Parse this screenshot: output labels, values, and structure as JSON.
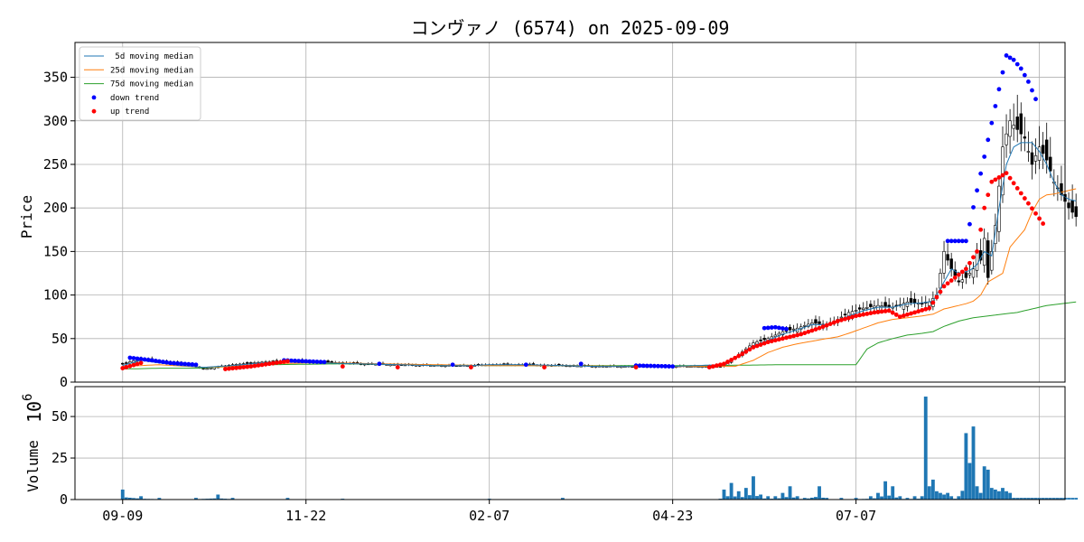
{
  "chart_data": {
    "type": "candlestick",
    "title": "コンヴァノ (6574) on 2025-09-09",
    "price_panel": {
      "ylabel": "Price",
      "ylim": [
        0,
        390
      ],
      "yticks": [
        0,
        50,
        100,
        150,
        200,
        250,
        300,
        350
      ],
      "grid": true,
      "legend_position": "top-left",
      "legend": [
        {
          "label": " 5d moving median",
          "color": "#1f77b4",
          "kind": "line"
        },
        {
          "label": "25d moving median",
          "color": "#ff7f0e",
          "kind": "line"
        },
        {
          "label": "75d moving median",
          "color": "#2ca02c",
          "kind": "line"
        },
        {
          "label": "down trend",
          "color": "#0000ff",
          "kind": "dot"
        },
        {
          "label": "up trend",
          "color": "#ff0000",
          "kind": "dot"
        }
      ]
    },
    "volume_panel": {
      "ylabel": "Volume",
      "scale_label": "10",
      "scale_exponent": "6",
      "ylim": [
        0,
        68
      ],
      "yticks": [
        0,
        25,
        50
      ],
      "bar_color": "#1f77b4",
      "grid": true
    },
    "x_axis": {
      "ticks": [
        {
          "label": "09-09",
          "index": 0
        },
        {
          "label": "11-22",
          "index": 50
        },
        {
          "label": "02-07",
          "index": 100
        },
        {
          "label": "04-23",
          "index": 150
        },
        {
          "label": "07-07",
          "index": 200
        },
        {
          "label": "",
          "index": 250
        }
      ],
      "xlim": [
        -13,
        257
      ]
    },
    "series_anchors": {
      "close": [
        [
          0,
          21
        ],
        [
          5,
          27
        ],
        [
          8,
          25
        ],
        [
          12,
          23
        ],
        [
          16,
          22
        ],
        [
          22,
          15
        ],
        [
          30,
          20
        ],
        [
          38,
          23
        ],
        [
          45,
          24
        ],
        [
          55,
          23
        ],
        [
          65,
          21
        ],
        [
          75,
          20
        ],
        [
          85,
          19
        ],
        [
          95,
          19
        ],
        [
          100,
          20
        ],
        [
          110,
          20
        ],
        [
          120,
          19
        ],
        [
          130,
          18
        ],
        [
          140,
          18
        ],
        [
          150,
          18
        ],
        [
          163,
          18
        ],
        [
          167,
          28
        ],
        [
          172,
          45
        ],
        [
          176,
          50
        ],
        [
          180,
          58
        ],
        [
          184,
          62
        ],
        [
          188,
          68
        ],
        [
          192,
          66
        ],
        [
          195,
          72
        ],
        [
          198,
          80
        ],
        [
          202,
          85
        ],
        [
          206,
          88
        ],
        [
          210,
          86
        ],
        [
          214,
          92
        ],
        [
          218,
          90
        ],
        [
          220,
          92
        ],
        [
          222,
          100
        ],
        [
          224,
          150
        ],
        [
          226,
          130
        ],
        [
          228,
          115
        ],
        [
          230,
          120
        ],
        [
          232,
          130
        ],
        [
          233,
          150
        ],
        [
          234,
          140
        ],
        [
          235,
          165
        ],
        [
          236,
          120
        ],
        [
          238,
          180
        ],
        [
          240,
          270
        ],
        [
          242,
          300
        ],
        [
          244,
          290
        ],
        [
          246,
          280
        ],
        [
          248,
          250
        ],
        [
          250,
          270
        ],
        [
          252,
          255
        ],
        [
          254,
          230
        ],
        [
          256,
          215
        ],
        [
          258,
          200
        ],
        [
          260,
          190
        ]
      ],
      "ma5": [
        [
          0,
          19
        ],
        [
          5,
          25
        ],
        [
          10,
          22
        ],
        [
          16,
          19
        ],
        [
          22,
          17
        ],
        [
          30,
          19
        ],
        [
          38,
          22
        ],
        [
          45,
          23
        ],
        [
          55,
          22
        ],
        [
          65,
          21
        ],
        [
          75,
          20
        ],
        [
          85,
          19
        ],
        [
          95,
          19
        ],
        [
          100,
          20
        ],
        [
          110,
          20
        ],
        [
          120,
          19
        ],
        [
          130,
          18
        ],
        [
          140,
          18
        ],
        [
          150,
          18
        ],
        [
          163,
          20
        ],
        [
          167,
          27
        ],
        [
          172,
          42
        ],
        [
          176,
          48
        ],
        [
          180,
          55
        ],
        [
          184,
          60
        ],
        [
          188,
          66
        ],
        [
          192,
          66
        ],
        [
          195,
          70
        ],
        [
          198,
          76
        ],
        [
          202,
          82
        ],
        [
          206,
          86
        ],
        [
          210,
          86
        ],
        [
          214,
          90
        ],
        [
          218,
          91
        ],
        [
          221,
          93
        ],
        [
          224,
          115
        ],
        [
          226,
          130
        ],
        [
          228,
          125
        ],
        [
          231,
          128
        ],
        [
          233,
          135
        ],
        [
          235,
          150
        ],
        [
          237,
          145
        ],
        [
          239,
          200
        ],
        [
          241,
          250
        ],
        [
          243,
          270
        ],
        [
          245,
          275
        ],
        [
          248,
          275
        ],
        [
          250,
          265
        ],
        [
          252,
          250
        ],
        [
          254,
          230
        ],
        [
          256,
          215
        ],
        [
          258,
          210
        ],
        [
          260,
          208
        ]
      ],
      "ma25": [
        [
          0,
          18
        ],
        [
          10,
          20
        ],
        [
          22,
          17
        ],
        [
          30,
          18
        ],
        [
          40,
          21
        ],
        [
          50,
          22
        ],
        [
          60,
          22
        ],
        [
          70,
          21
        ],
        [
          85,
          20
        ],
        [
          100,
          19
        ],
        [
          120,
          19
        ],
        [
          140,
          18
        ],
        [
          160,
          18
        ],
        [
          167,
          18
        ],
        [
          172,
          25
        ],
        [
          176,
          34
        ],
        [
          180,
          40
        ],
        [
          184,
          44
        ],
        [
          188,
          47
        ],
        [
          192,
          50
        ],
        [
          195,
          52
        ],
        [
          198,
          56
        ],
        [
          202,
          62
        ],
        [
          206,
          68
        ],
        [
          210,
          72
        ],
        [
          214,
          74
        ],
        [
          218,
          76
        ],
        [
          221,
          78
        ],
        [
          224,
          84
        ],
        [
          226,
          86
        ],
        [
          228,
          88
        ],
        [
          230,
          90
        ],
        [
          232,
          93
        ],
        [
          234,
          100
        ],
        [
          236,
          115
        ],
        [
          238,
          120
        ],
        [
          240,
          125
        ],
        [
          242,
          155
        ],
        [
          244,
          165
        ],
        [
          246,
          175
        ],
        [
          248,
          195
        ],
        [
          250,
          210
        ],
        [
          252,
          215
        ],
        [
          254,
          216
        ],
        [
          256,
          218
        ],
        [
          258,
          220
        ],
        [
          260,
          222
        ]
      ],
      "ma75": [
        [
          0,
          15
        ],
        [
          10,
          16
        ],
        [
          20,
          16
        ],
        [
          30,
          18
        ],
        [
          40,
          20
        ],
        [
          60,
          21
        ],
        [
          80,
          20
        ],
        [
          100,
          19
        ],
        [
          120,
          19
        ],
        [
          140,
          19
        ],
        [
          160,
          19
        ],
        [
          180,
          20
        ],
        [
          198,
          20
        ],
        [
          200,
          20
        ],
        [
          203,
          38
        ],
        [
          206,
          45
        ],
        [
          210,
          50
        ],
        [
          214,
          54
        ],
        [
          218,
          56
        ],
        [
          221,
          58
        ],
        [
          224,
          64
        ],
        [
          228,
          70
        ],
        [
          232,
          74
        ],
        [
          236,
          76
        ],
        [
          240,
          78
        ],
        [
          244,
          80
        ],
        [
          248,
          84
        ],
        [
          252,
          88
        ],
        [
          256,
          90
        ],
        [
          260,
          92
        ]
      ],
      "volume": [
        [
          0,
          6
        ],
        [
          5,
          2
        ],
        [
          10,
          1
        ],
        [
          20,
          1
        ],
        [
          26,
          3
        ],
        [
          30,
          1
        ],
        [
          45,
          1
        ],
        [
          60,
          0.5
        ],
        [
          100,
          0.5
        ],
        [
          120,
          1
        ],
        [
          163,
          0.5
        ],
        [
          164,
          6
        ],
        [
          166,
          10
        ],
        [
          168,
          5
        ],
        [
          170,
          7
        ],
        [
          172,
          14
        ],
        [
          174,
          3
        ],
        [
          176,
          2
        ],
        [
          178,
          2
        ],
        [
          180,
          4
        ],
        [
          182,
          8
        ],
        [
          184,
          2
        ],
        [
          186,
          1
        ],
        [
          190,
          8
        ],
        [
          192,
          1
        ],
        [
          196,
          1
        ],
        [
          200,
          1
        ],
        [
          204,
          2
        ],
        [
          206,
          4
        ],
        [
          208,
          11
        ],
        [
          210,
          8
        ],
        [
          212,
          2
        ],
        [
          214,
          1
        ],
        [
          216,
          2
        ],
        [
          218,
          2
        ],
        [
          219,
          62
        ],
        [
          220,
          8
        ],
        [
          221,
          12
        ],
        [
          222,
          5
        ],
        [
          223,
          4
        ],
        [
          224,
          3
        ],
        [
          225,
          4
        ],
        [
          226,
          2
        ],
        [
          228,
          2
        ],
        [
          230,
          40
        ],
        [
          231,
          22
        ],
        [
          232,
          44
        ],
        [
          233,
          8
        ],
        [
          234,
          4
        ],
        [
          235,
          20
        ],
        [
          236,
          18
        ],
        [
          237,
          7
        ],
        [
          238,
          6
        ],
        [
          239,
          5
        ],
        [
          240,
          7
        ],
        [
          241,
          5
        ],
        [
          242,
          4
        ]
      ]
    },
    "trend_dots": {
      "down": [
        [
          2,
          28
        ],
        [
          8,
          25
        ],
        [
          13,
          22
        ],
        [
          20,
          20
        ],
        [
          44,
          25
        ],
        [
          55,
          23
        ],
        [
          70,
          21
        ],
        [
          90,
          20
        ],
        [
          110,
          20
        ],
        [
          125,
          21
        ],
        [
          140,
          19
        ],
        [
          150,
          18
        ],
        [
          175,
          62
        ],
        [
          178,
          63
        ],
        [
          181,
          61
        ],
        [
          225,
          162
        ],
        [
          230,
          162
        ],
        [
          241,
          375
        ],
        [
          243,
          370
        ],
        [
          245,
          360
        ],
        [
          247,
          345
        ],
        [
          249,
          325
        ]
      ],
      "up": [
        [
          0,
          16
        ],
        [
          5,
          22
        ],
        [
          28,
          15
        ],
        [
          35,
          18
        ],
        [
          45,
          24
        ],
        [
          60,
          18
        ],
        [
          75,
          17
        ],
        [
          95,
          17
        ],
        [
          115,
          17
        ],
        [
          140,
          17
        ],
        [
          160,
          17
        ],
        [
          164,
          21
        ],
        [
          168,
          30
        ],
        [
          172,
          40
        ],
        [
          176,
          46
        ],
        [
          180,
          50
        ],
        [
          185,
          55
        ],
        [
          190,
          62
        ],
        [
          195,
          70
        ],
        [
          200,
          76
        ],
        [
          205,
          80
        ],
        [
          209,
          82
        ],
        [
          212,
          75
        ],
        [
          216,
          80
        ],
        [
          220,
          85
        ],
        [
          224,
          110
        ],
        [
          227,
          120
        ],
        [
          230,
          130
        ],
        [
          233,
          150
        ],
        [
          235,
          200
        ],
        [
          237,
          230
        ],
        [
          239,
          235
        ],
        [
          241,
          240
        ],
        [
          251,
          182
        ]
      ]
    }
  }
}
